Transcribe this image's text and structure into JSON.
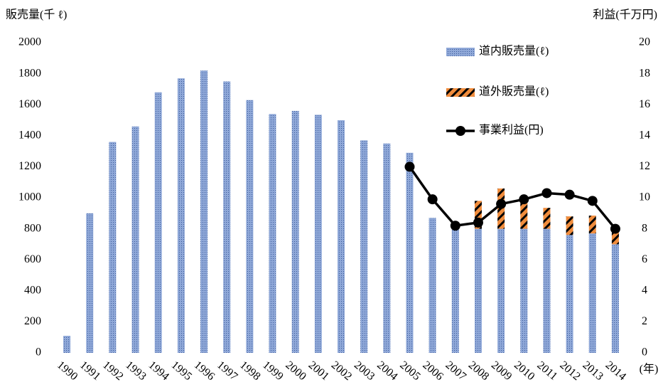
{
  "chart_data": {
    "type": "bar",
    "stacked": true,
    "y_label": "販売量(千 ℓ)",
    "y2_label": "利益(千万円)",
    "x_label": "(年)",
    "categories": [
      "1990",
      "1991",
      "1992",
      "1993",
      "1994",
      "1995",
      "1996",
      "1997",
      "1998",
      "1999",
      "2000",
      "2001",
      "2002",
      "2003",
      "2004",
      "2005",
      "2006",
      "2007",
      "2008",
      "2009",
      "2010",
      "2011",
      "2012",
      "2013",
      "2014"
    ],
    "series": [
      {
        "name": "道内販売量(ℓ)",
        "color": "#8fa8d8",
        "values": [
          110,
          900,
          1360,
          1460,
          1680,
          1770,
          1820,
          1750,
          1630,
          1540,
          1560,
          1535,
          1500,
          1370,
          1350,
          1290,
          870,
          810,
          800,
          800,
          800,
          800,
          760,
          770,
          700
        ]
      },
      {
        "name": "道外販売量(ℓ)",
        "color": "#f08c3c",
        "values": [
          null,
          null,
          null,
          null,
          null,
          null,
          null,
          null,
          null,
          null,
          null,
          null,
          null,
          null,
          null,
          null,
          null,
          null,
          180,
          260,
          180,
          135,
          120,
          115,
          100
        ]
      },
      {
        "name": "事業利益(円)",
        "color": "#000000",
        "axis": "y2",
        "values": [
          null,
          null,
          null,
          null,
          null,
          null,
          null,
          null,
          null,
          null,
          null,
          null,
          null,
          null,
          null,
          12.0,
          9.9,
          8.2,
          8.4,
          9.6,
          9.9,
          10.3,
          10.2,
          9.8,
          8.0
        ]
      }
    ],
    "ylim": [
      0,
      2000
    ],
    "yticks": [
      0,
      200,
      400,
      600,
      800,
      1000,
      1200,
      1400,
      1600,
      1800,
      2000
    ],
    "y2lim": [
      0,
      20
    ],
    "y2ticks": [
      0,
      2,
      4,
      6,
      8,
      10,
      12,
      14,
      16,
      18,
      20
    ],
    "legend": "upper right",
    "grid": false
  }
}
